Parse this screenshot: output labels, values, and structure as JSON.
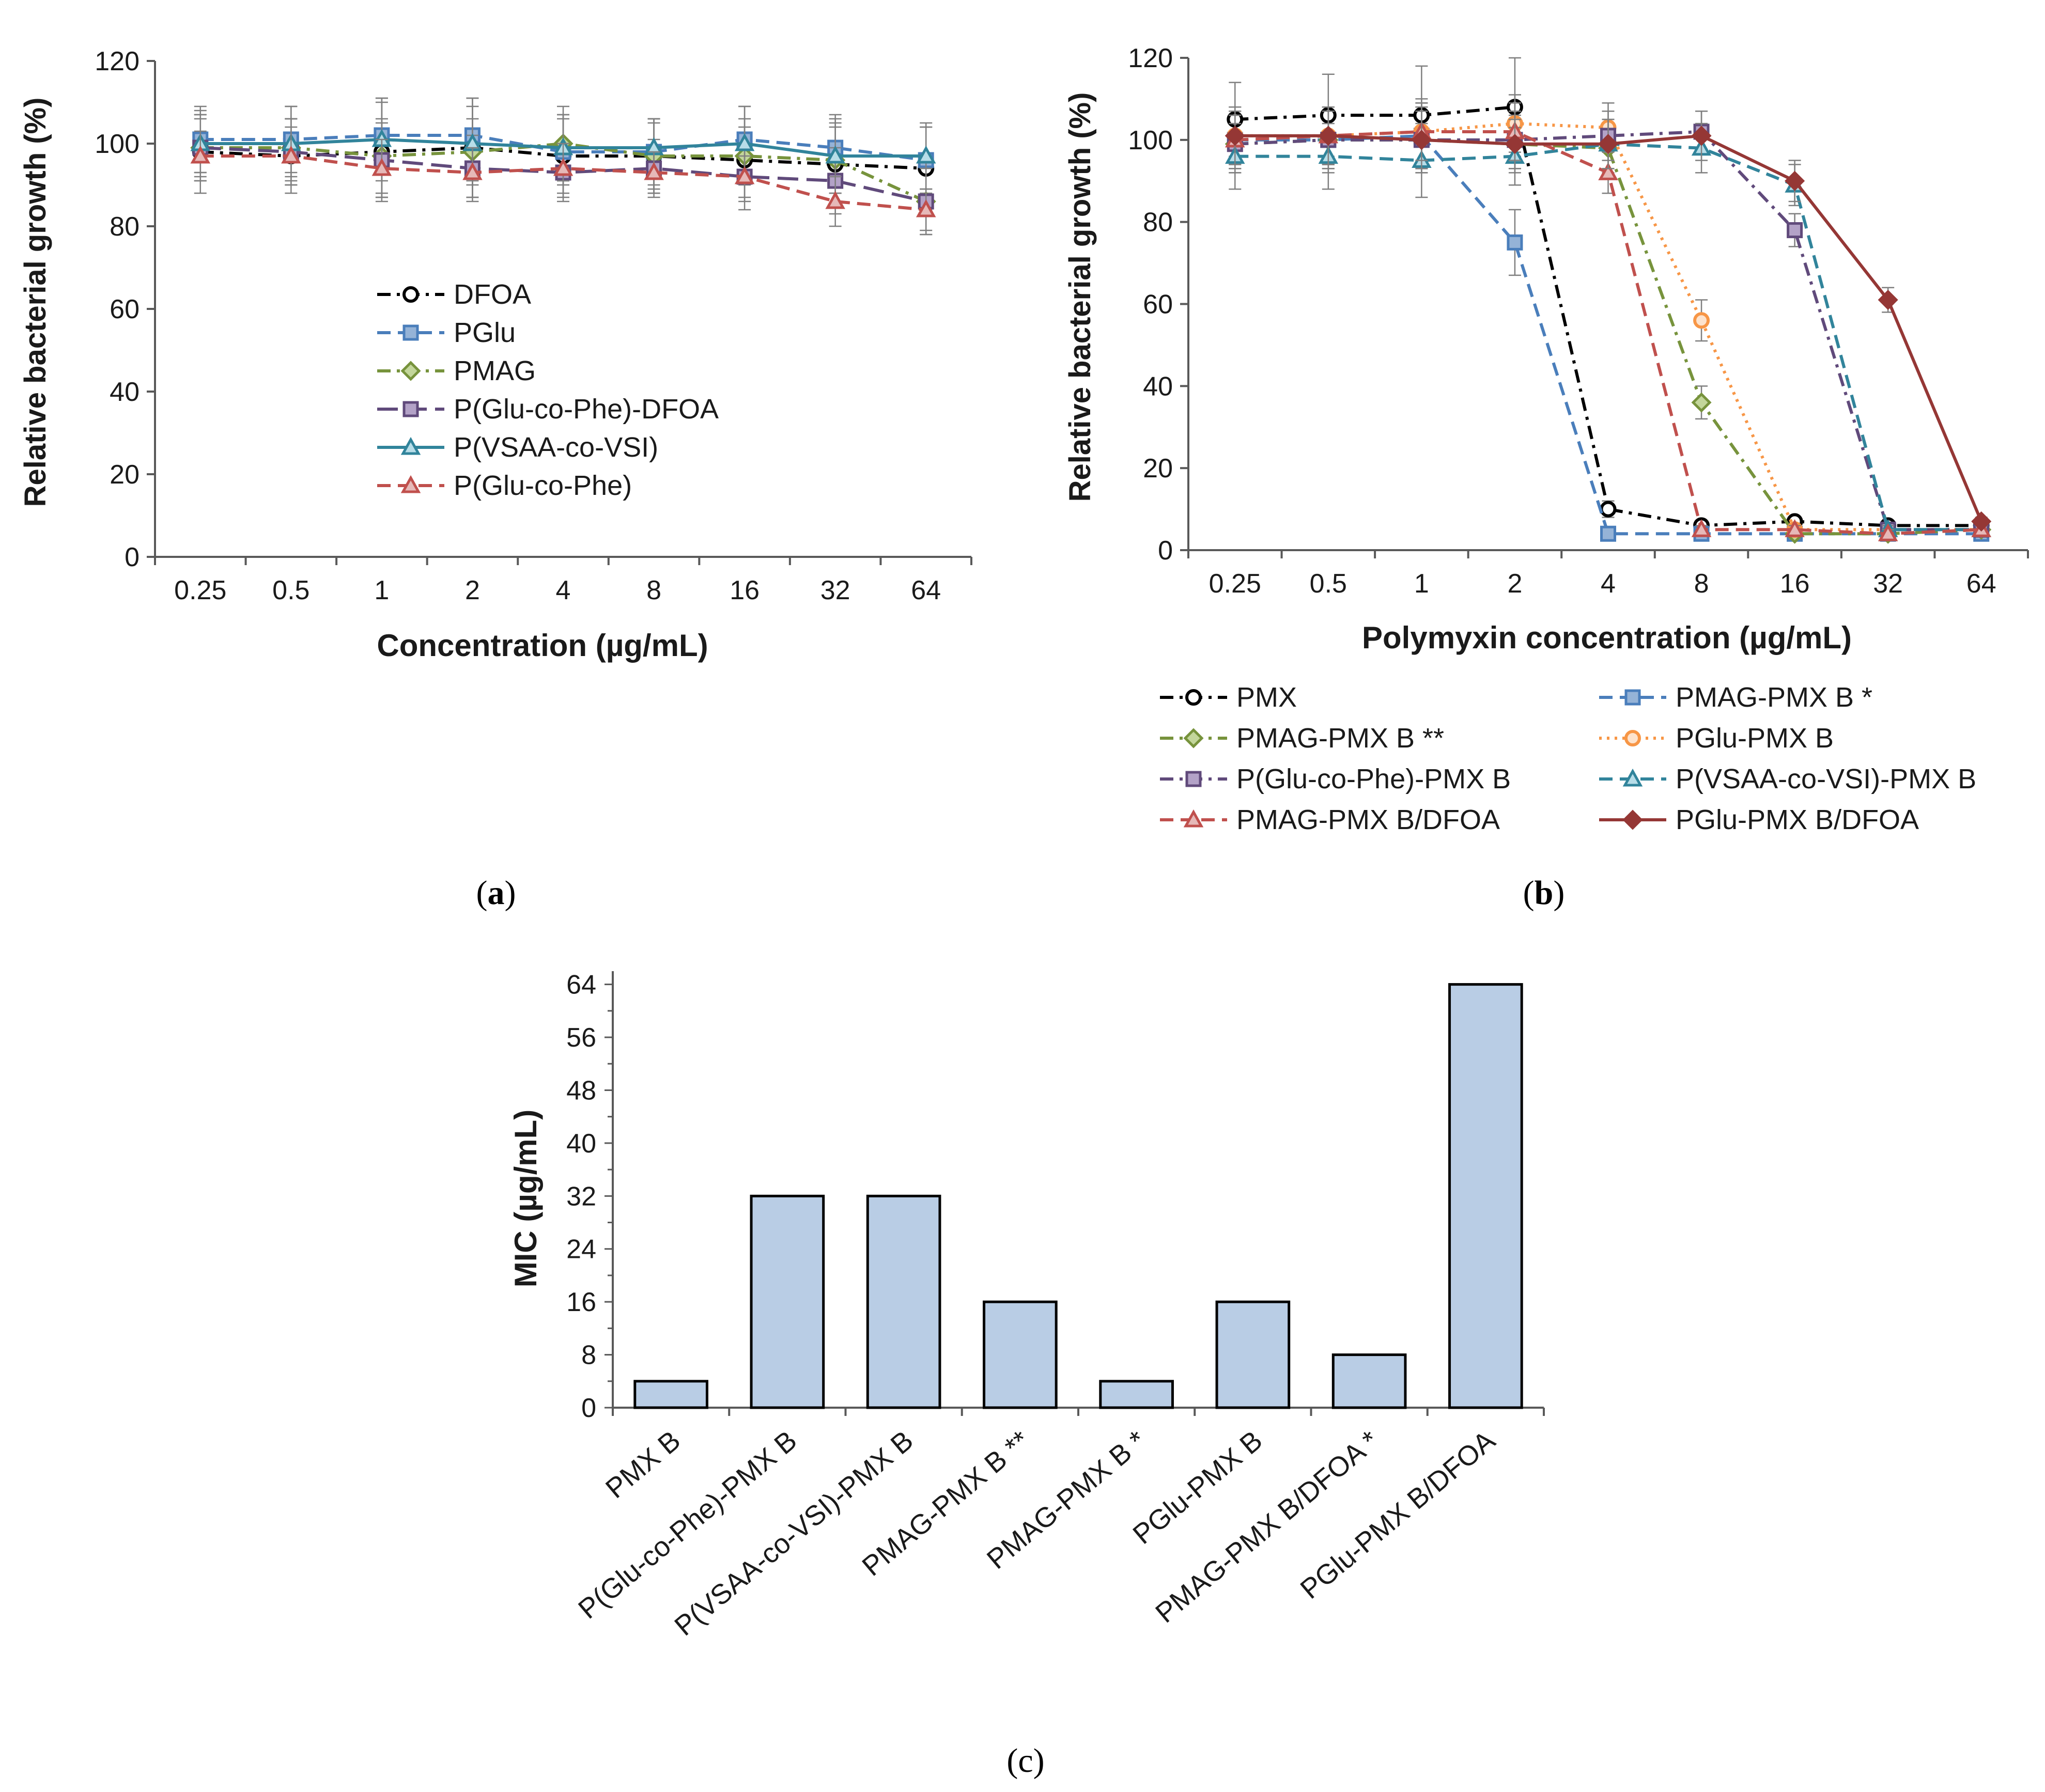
{
  "chart_data": [
    {
      "id": "a",
      "panel_label": "a",
      "type": "line",
      "xlabel": "Concentration (µg/mL)",
      "ylabel": "Relative bacterial growth (%)",
      "categories": [
        "0.25",
        "0.5",
        "1",
        "2",
        "4",
        "8",
        "16",
        "32",
        "64"
      ],
      "ylim": [
        0,
        120
      ],
      "yticks": [
        "0",
        "20",
        "40",
        "60",
        "80",
        "100",
        "120"
      ],
      "legend_position": "center-left inside plot",
      "series": [
        {
          "name": "DFOA",
          "color": "#000000",
          "marker": "circle-open",
          "dash": "dashdot",
          "values": [
            98,
            97,
            98,
            99,
            97,
            97,
            96,
            95,
            94
          ],
          "errors": [
            10,
            9,
            12,
            12,
            10,
            9,
            10,
            10,
            10
          ]
        },
        {
          "name": "PGlu",
          "color": "#4a7ebb",
          "marker": "square",
          "dash": "dashed",
          "values": [
            101,
            101,
            102,
            102,
            98,
            98,
            101,
            99,
            96
          ],
          "errors": [
            8,
            8,
            9,
            9,
            8,
            8,
            8,
            8,
            8
          ]
        },
        {
          "name": "PMAG",
          "color": "#77933c",
          "marker": "diamond",
          "dash": "dashdot",
          "values": [
            99,
            99,
            97,
            98,
            100,
            97,
            97,
            96,
            86
          ],
          "errors": [
            7,
            7,
            9,
            8,
            9,
            8,
            7,
            8,
            8
          ]
        },
        {
          "name": "P(Glu-co-Phe)-DFOA",
          "color": "#604a7b",
          "marker": "square",
          "dash": "longdash",
          "values": [
            99,
            98,
            96,
            94,
            93,
            94,
            92,
            91,
            86
          ],
          "errors": [
            8,
            8,
            9,
            8,
            7,
            7,
            8,
            8,
            8
          ]
        },
        {
          "name": "P(VSAA-co-VSI)",
          "color": "#31849b",
          "marker": "triangle-open",
          "dash": "solid",
          "values": [
            100,
            100,
            101,
            100,
            99,
            99,
            100,
            97,
            97
          ],
          "errors": [
            7,
            9,
            10,
            9,
            8,
            7,
            9,
            9,
            8
          ]
        },
        {
          "name": "P(Glu-co-Phe)",
          "color": "#c0504d",
          "marker": "triangle",
          "dash": "dashed",
          "values": [
            97,
            97,
            94,
            93,
            94,
            93,
            92,
            86,
            84
          ],
          "errors": [
            6,
            7,
            7,
            6,
            6,
            5,
            5,
            6,
            5
          ]
        }
      ]
    },
    {
      "id": "b",
      "panel_label": "b",
      "type": "line",
      "xlabel": "Polymyxin concentration (µg/mL)",
      "ylabel": "Relative bacterial growth (%)",
      "categories": [
        "0.25",
        "0.5",
        "1",
        "2",
        "4",
        "8",
        "16",
        "32",
        "64"
      ],
      "ylim": [
        0,
        120
      ],
      "yticks": [
        "0",
        "20",
        "40",
        "60",
        "80",
        "100",
        "120"
      ],
      "legend_position": "below plot, two columns",
      "series": [
        {
          "name": "PMX",
          "color": "#000000",
          "marker": "circle-open",
          "dash": "dashdot",
          "values": [
            105,
            106,
            106,
            108,
            10,
            6,
            7,
            6,
            6
          ],
          "errors": [
            9,
            10,
            12,
            12,
            2,
            1,
            1,
            1,
            1
          ]
        },
        {
          "name": "PMAG-PMX B *",
          "color": "#4a7ebb",
          "marker": "square",
          "dash": "dashed",
          "values": [
            100,
            100,
            101,
            75,
            4,
            4,
            4,
            4,
            4
          ],
          "errors": [
            7,
            8,
            8,
            8,
            1,
            1,
            1,
            1,
            1
          ]
        },
        {
          "name": "PMAG-PMX B **",
          "color": "#77933c",
          "marker": "diamond",
          "dash": "dashdot",
          "values": [
            99,
            100,
            100,
            99,
            98,
            36,
            4,
            4,
            5
          ],
          "errors": [
            7,
            7,
            8,
            7,
            6,
            4,
            1,
            1,
            1
          ]
        },
        {
          "name": "PGlu-PMX B",
          "color": "#f79646",
          "marker": "circle-open",
          "dash": "dotted",
          "values": [
            101,
            101,
            102,
            104,
            103,
            56,
            5,
            5,
            5
          ],
          "errors": [
            7,
            7,
            8,
            7,
            6,
            5,
            1,
            1,
            1
          ]
        },
        {
          "name": "P(Glu-co-Phe)-PMX B",
          "color": "#604a7b",
          "marker": "square",
          "dash": "dashdot",
          "values": [
            99,
            100,
            100,
            100,
            101,
            102,
            78,
            5,
            5
          ],
          "errors": [
            7,
            7,
            8,
            7,
            6,
            5,
            4,
            1,
            1
          ]
        },
        {
          "name": "P(VSAA-co-VSI)-PMX B",
          "color": "#31849b",
          "marker": "triangle-open",
          "dash": "dashed",
          "values": [
            96,
            96,
            95,
            96,
            99,
            98,
            89,
            5,
            5
          ],
          "errors": [
            8,
            8,
            9,
            7,
            6,
            6,
            5,
            1,
            1
          ]
        },
        {
          "name": "PMAG-PMX B/DFOA",
          "color": "#c0504d",
          "marker": "triangle",
          "dash": "dashed",
          "values": [
            100,
            101,
            102,
            102,
            92,
            5,
            5,
            4,
            5
          ],
          "errors": [
            7,
            7,
            7,
            7,
            5,
            1,
            1,
            1,
            1
          ]
        },
        {
          "name": "PGlu-PMX B/DFOA",
          "color": "#953735",
          "marker": "diamond-filled",
          "dash": "solid",
          "values": [
            101,
            101,
            100,
            99,
            99,
            101,
            90,
            61,
            7
          ],
          "errors": [
            7,
            7,
            7,
            6,
            6,
            6,
            5,
            3,
            1
          ]
        }
      ]
    },
    {
      "id": "c",
      "panel_label": "c",
      "type": "bar",
      "ylabel": "MIC (µg/mL)",
      "xlabel": "",
      "categories": [
        "PMX B",
        "P(Glu-co-Phe)-PMX B",
        "P(VSAA-co-VSI)-PMX B",
        "PMAG-PMX B **",
        "PMAG-PMX B *",
        "PGlu-PMX B",
        "PMAG-PMX B/DFOA *",
        "PGlu-PMX B/DFOA"
      ],
      "values": [
        4,
        32,
        32,
        16,
        4,
        16,
        8,
        64
      ],
      "ylim": [
        0,
        66
      ],
      "yticks": [
        "0",
        "8",
        "16",
        "24",
        "32",
        "40",
        "48",
        "56",
        "64"
      ],
      "bar_color": "#b9cde5",
      "bar_edge_color": "#000000"
    }
  ]
}
